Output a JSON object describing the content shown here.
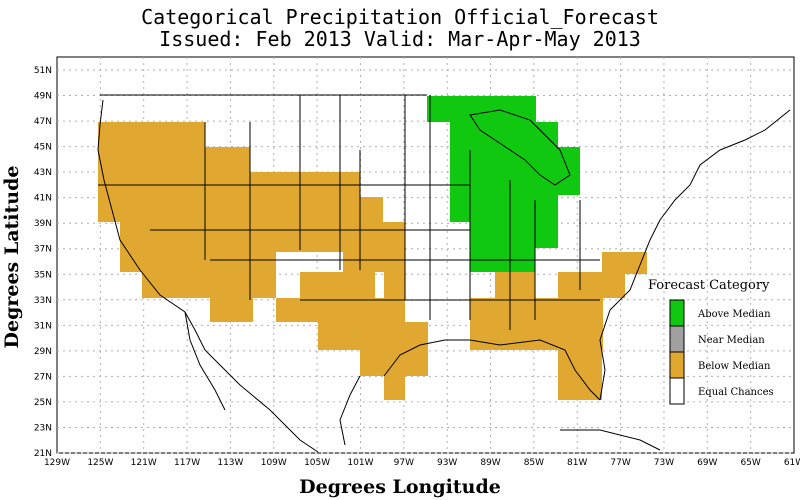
{
  "title_line1": "Categorical Precipitation Official_Forecast",
  "title_line2": "Issued: Feb 2013 Valid: Mar-Apr-May 2013",
  "x_axis_title": "Degrees Longitude",
  "y_axis_title": "Degrees Latitude",
  "lon_ticks": [
    "129W",
    "125W",
    "121W",
    "117W",
    "113W",
    "109W",
    "105W",
    "101W",
    "97W",
    "93W",
    "89W",
    "85W",
    "81W",
    "77W",
    "73W",
    "69W",
    "65W",
    "61W"
  ],
  "lat_ticks": [
    "51N",
    "49N",
    "47N",
    "45N",
    "43N",
    "41N",
    "39N",
    "37N",
    "35N",
    "33N",
    "31N",
    "29N",
    "27N",
    "25N",
    "23N",
    "21N"
  ],
  "legend": {
    "title": "Forecast Category",
    "items": [
      {
        "label": "Above Median",
        "color": "#10c810"
      },
      {
        "label": "Near Median",
        "color": "#a0a0a0"
      },
      {
        "label": "Below Median",
        "color": "#e0a830"
      },
      {
        "label": "Equal Chances",
        "color": "#ffffff"
      }
    ]
  },
  "colors": {
    "above": "#10c810",
    "below": "#e0a830",
    "grid": "#b0b0b0"
  }
}
